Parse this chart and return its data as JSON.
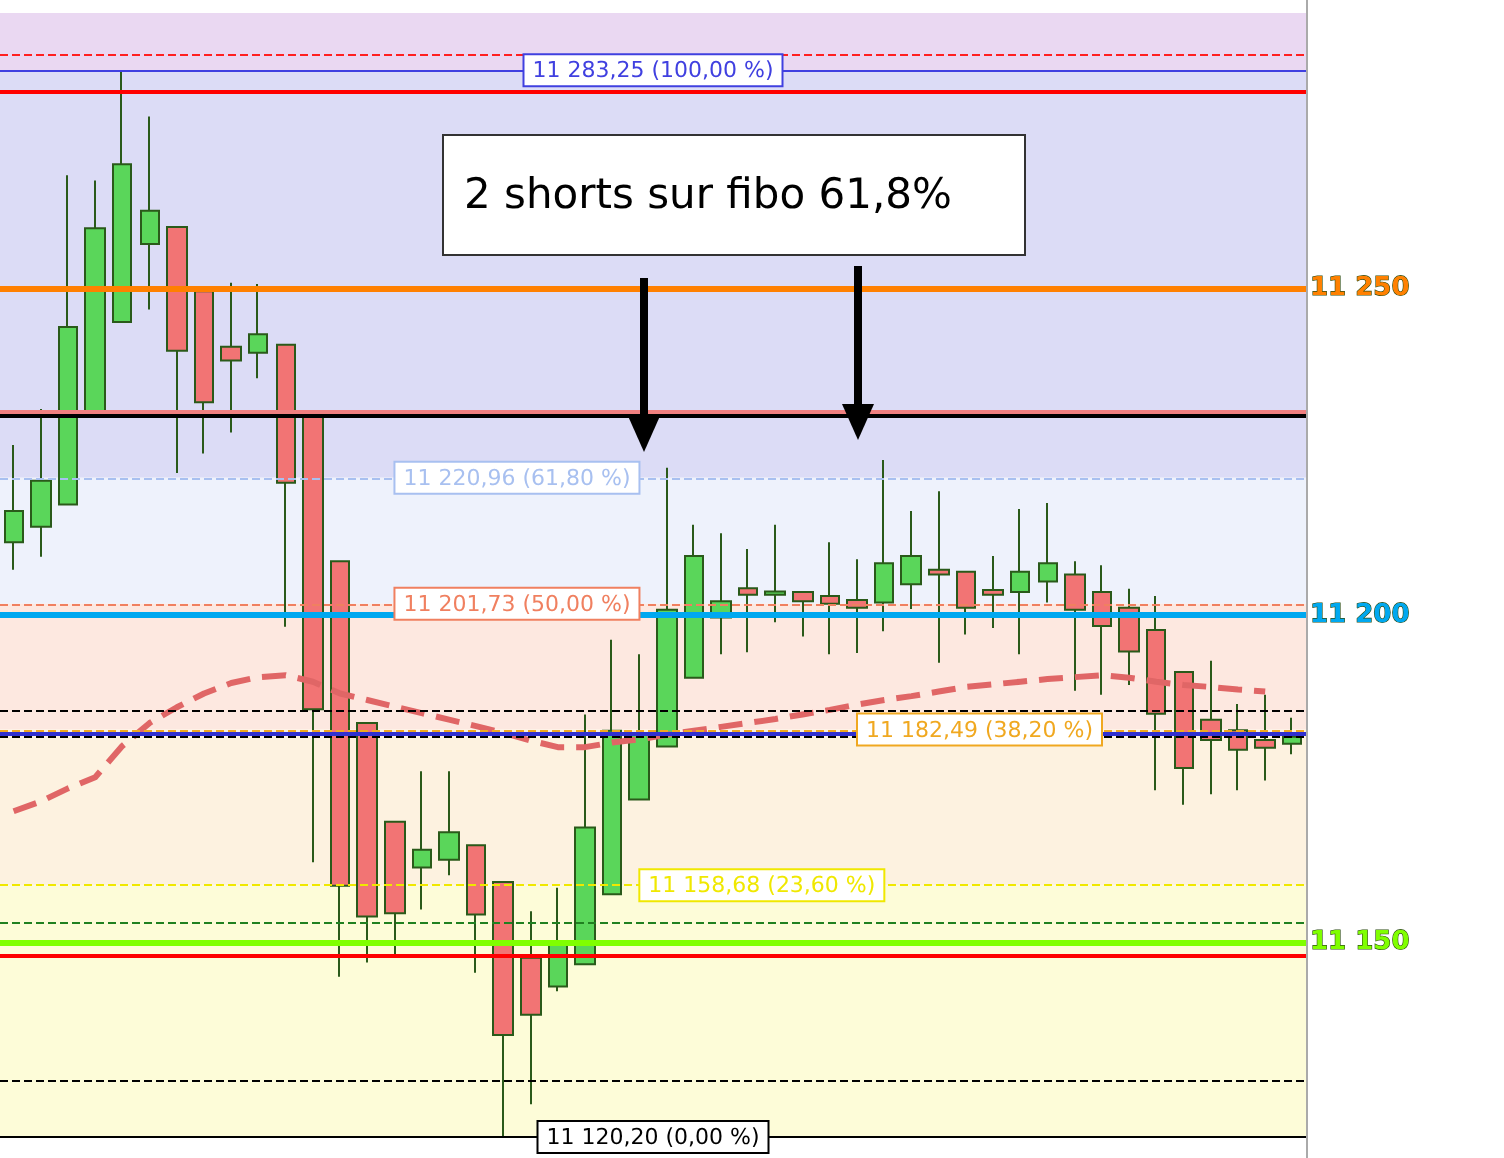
{
  "chart_data": {
    "type": "candlestick",
    "categories": [
      null,
      null,
      null,
      null,
      null,
      null,
      null,
      null,
      null,
      null,
      null,
      null,
      null,
      null,
      null,
      null,
      null,
      null,
      null,
      null,
      null,
      null,
      null,
      null,
      null,
      null,
      null,
      null,
      null,
      null,
      null,
      null,
      null,
      null,
      null,
      null,
      null,
      null,
      null,
      null,
      null,
      null,
      null,
      null,
      null,
      null,
      null,
      null
    ],
    "ylim": [
      11117,
      11294
    ],
    "yticks": [
      {
        "value": 11250,
        "label": "11 250"
      },
      {
        "value": 11200,
        "label": "11 200"
      },
      {
        "value": 11150,
        "label": "11 150"
      }
    ],
    "annotations": [
      "2 shorts sur fibo 61,8%"
    ],
    "series": [
      {
        "type": "candlestick",
        "ohlc": [
          [
            11211.1,
            11226.0,
            11206.9,
            11215.9
          ],
          [
            11213.5,
            11231.5,
            11208.9,
            11220.5
          ],
          [
            11216.9,
            11267.2,
            11216.9,
            11244.0
          ],
          [
            11230.6,
            11266.4,
            11230.6,
            11259.1
          ],
          [
            11244.8,
            11283.25,
            11244.8,
            11268.9
          ],
          [
            11256.7,
            11276.2,
            11246.7,
            11261.8
          ],
          [
            11259.3,
            11259.3,
            11221.7,
            11240.4
          ],
          [
            11249.5,
            11249.7,
            11224.7,
            11232.5
          ],
          [
            11241.0,
            11250.8,
            11227.9,
            11238.9
          ],
          [
            11240.1,
            11250.6,
            11236.2,
            11242.9
          ],
          [
            11241.3,
            11241.3,
            11198.2,
            11220.2
          ],
          [
            11230.9,
            11230.9,
            11162.2,
            11185.6
          ],
          [
            11208.2,
            11208.2,
            11144.7,
            11158.6
          ],
          [
            11183.5,
            11183.5,
            11146.9,
            11153.9
          ],
          [
            11168.4,
            11168.4,
            11148.2,
            11154.4
          ],
          [
            11161.4,
            11176.1,
            11155.0,
            11164.1
          ],
          [
            11162.6,
            11176.1,
            11160.2,
            11166.8
          ],
          [
            11164.8,
            11164.8,
            11145.3,
            11154.2
          ],
          [
            11159.2,
            11159.2,
            11120.2,
            11135.8
          ],
          [
            11147.6,
            11154.7,
            11125.2,
            11138.9
          ],
          [
            11143.2,
            11158.3,
            11142.5,
            11149.6
          ],
          [
            11146.6,
            11184.8,
            11146.6,
            11167.5
          ],
          [
            11157.3,
            11196.2,
            11157.3,
            11182.3
          ],
          [
            11171.8,
            11194.0,
            11171.8,
            11181.7
          ],
          [
            11179.9,
            11222.5,
            11179.9,
            11200.8
          ],
          [
            11190.4,
            11213.8,
            11190.4,
            11209.0
          ],
          [
            11199.6,
            11212.5,
            11194.0,
            11202.1
          ],
          [
            11204.1,
            11210.1,
            11194.3,
            11203.1
          ],
          [
            11203.1,
            11213.8,
            11198.9,
            11203.6
          ],
          [
            11203.5,
            11203.5,
            11196.7,
            11202.1
          ],
          [
            11202.9,
            11211.1,
            11194.0,
            11201.7
          ],
          [
            11202.3,
            11208.5,
            11194.2,
            11201.1
          ],
          [
            11201.9,
            11223.7,
            11197.5,
            11207.9
          ],
          [
            11204.7,
            11215.9,
            11200.9,
            11209.0
          ],
          [
            11206.9,
            11218.9,
            11192.7,
            11206.2
          ],
          [
            11206.6,
            11206.6,
            11197.0,
            11201.1
          ],
          [
            11203.8,
            11209.0,
            11198.0,
            11203.1
          ],
          [
            11203.5,
            11216.2,
            11194.0,
            11206.6
          ],
          [
            11205.1,
            11217.1,
            11201.9,
            11207.9
          ],
          [
            11206.2,
            11208.2,
            11188.4,
            11200.8
          ],
          [
            11203.5,
            11207.6,
            11187.8,
            11198.3
          ],
          [
            11201.1,
            11204.0,
            11189.3,
            11194.4
          ],
          [
            11197.7,
            11202.9,
            11173.2,
            11184.9
          ],
          [
            11191.3,
            11191.3,
            11171.0,
            11176.6
          ],
          [
            11184.0,
            11193.0,
            11172.6,
            11180.9
          ],
          [
            11182.4,
            11186.4,
            11173.2,
            11179.4
          ],
          [
            11180.9,
            11187.8,
            11174.7,
            11179.7
          ],
          [
            11180.3,
            11184.3,
            11178.7,
            11181.4
          ]
        ],
        "colors": [
          "#5ad65a",
          "#5ad65a",
          "#5ad65a",
          "#5ad65a",
          "#5ad65a",
          "#5ad65a",
          "#f27474",
          "#f27474",
          "#f27474",
          "#5ad65a",
          "#f27474",
          "#f27474",
          "#f27474",
          "#f27474",
          "#f27474",
          "#5ad65a",
          "#5ad65a",
          "#f27474",
          "#f27474",
          "#f27474",
          "#5ad65a",
          "#5ad65a",
          "#5ad65a",
          "#5ad65a",
          "#5ad65a",
          "#5ad65a",
          "#5ad65a",
          "#f27474",
          "#5ad65a",
          "#f27474",
          "#f27474",
          "#f27474",
          "#5ad65a",
          "#5ad65a",
          "#f27474",
          "#f27474",
          "#f27474",
          "#5ad65a",
          "#5ad65a",
          "#f27474",
          "#f27474",
          "#f27474",
          "#f27474",
          "#f27474",
          "#f27474",
          "#f27474",
          "#f27474",
          "#5ad65a"
        ]
      },
      {
        "type": "line",
        "color": "#e06666",
        "line_style": "dashed",
        "marker": "none",
        "values": [
          11170.0,
          11171.5,
          11173.5,
          11175.2,
          11180.0,
          11183.5,
          11185.9,
          11188.0,
          11189.6,
          11190.5,
          11190.8,
          11189.8,
          11188.0,
          11187.0,
          11186.0,
          11185.0,
          11184.0,
          11183.0,
          11182.0,
          11180.8,
          11179.8,
          11179.8,
          11180.5,
          11181.0,
          11181.7,
          11182.3,
          11182.9,
          11183.5,
          11184.1,
          11184.8,
          11185.5,
          11186.3,
          11187.0,
          11187.6,
          11188.3,
          11189.0,
          11189.4,
          11189.8,
          11190.2,
          11190.5,
          11190.8,
          11190.4,
          11189.8,
          11189.3,
          11189.0,
          11188.6,
          11188.3,
          null
        ]
      }
    ],
    "ref_lines": [
      {
        "axis": "y",
        "value": 11283.25,
        "label": "11 283,25 (100,00 %)",
        "color": "#4040e0",
        "line_style": "solid"
      },
      {
        "axis": "y",
        "value": 11220.96,
        "label": "11 220,96 (61,80 %)",
        "color": "#a8c0f0",
        "line_style": "dashed"
      },
      {
        "axis": "y",
        "value": 11201.73,
        "label": "11 201,73 (50,00 %)",
        "color": "#f08060",
        "line_style": "dashed"
      },
      {
        "axis": "y",
        "value": 11182.49,
        "label": "11 182,49 (38,20 %)",
        "color": "#f0a820",
        "line_style": "dashed"
      },
      {
        "axis": "y",
        "value": 11158.68,
        "label": "11 158,68 (23,60 %)",
        "color": "#f0e800",
        "line_style": "dashed"
      },
      {
        "axis": "y",
        "value": 11120.2,
        "label": "11 120,20 (0,00 %)",
        "color": "#000000",
        "line_style": "solid"
      },
      {
        "axis": "y",
        "value": 11250,
        "color": "#ff8000",
        "line_style": "solid"
      },
      {
        "axis": "y",
        "value": 11200,
        "color": "#00a8f0",
        "line_style": "solid"
      },
      {
        "axis": "y",
        "value": 11150,
        "color": "#80ff00",
        "line_style": "solid"
      },
      {
        "axis": "y",
        "value": 11285.8,
        "color": "#ff2020",
        "line_style": "dashed"
      },
      {
        "axis": "y",
        "value": 11280.0,
        "color": "#ff0000",
        "line_style": "solid"
      },
      {
        "axis": "y",
        "value": 11231.1,
        "color": "#f08080",
        "line_style": "solid"
      },
      {
        "axis": "y",
        "value": 11230.5,
        "color": "#000000",
        "line_style": "solid"
      },
      {
        "axis": "y",
        "value": 11185.3,
        "color": "#000000",
        "line_style": "dashed"
      },
      {
        "axis": "y",
        "value": 11181.9,
        "color": "#3030d0",
        "line_style": "solid"
      },
      {
        "axis": "y",
        "value": 11181.3,
        "color": "#000000",
        "line_style": "dashed"
      },
      {
        "axis": "y",
        "value": 11152.9,
        "color": "#208020",
        "line_style": "dashed"
      },
      {
        "axis": "y",
        "value": 11148.0,
        "color": "#ff0000",
        "line_style": "solid"
      },
      {
        "axis": "y",
        "value": 11128.8,
        "color": "#000000",
        "line_style": "dashed"
      }
    ],
    "bands": [
      {
        "axis": "y",
        "from": 11283.25,
        "to": 11292,
        "color": "#ead8f2"
      },
      {
        "axis": "y",
        "from": 11220.96,
        "to": 11283.25,
        "color": "#dcdcf6"
      },
      {
        "axis": "y",
        "from": 11201.73,
        "to": 11220.96,
        "color": "#eef2fc"
      },
      {
        "axis": "y",
        "from": 11182.49,
        "to": 11201.73,
        "color": "#fde8e0"
      },
      {
        "axis": "y",
        "from": 11158.68,
        "to": 11182.49,
        "color": "#fdf2e0"
      },
      {
        "axis": "y",
        "from": 11120.2,
        "to": 11158.68,
        "color": "#fdfcd8"
      }
    ]
  }
}
